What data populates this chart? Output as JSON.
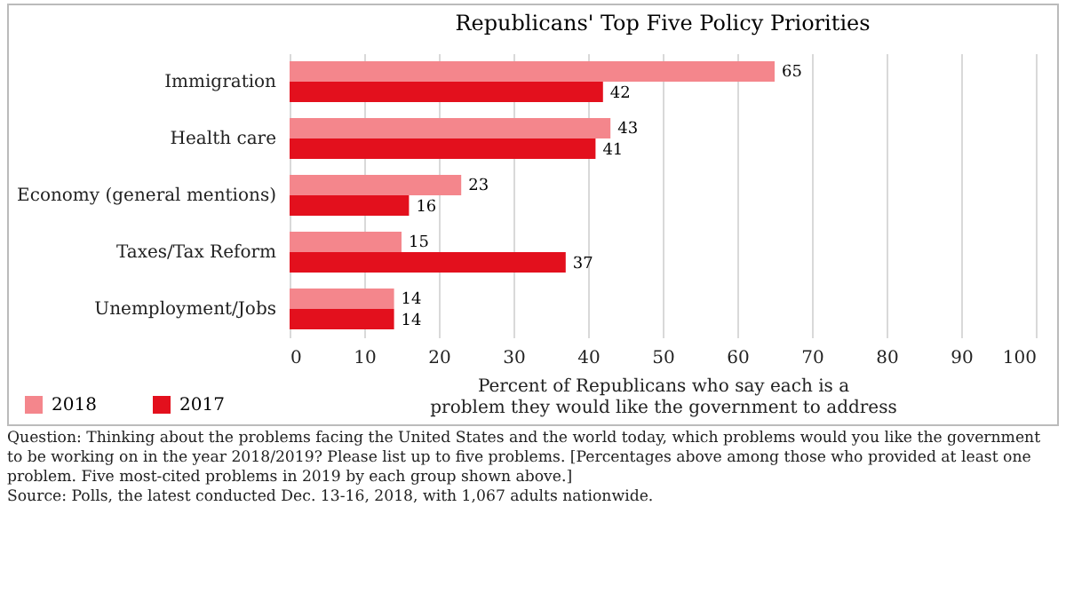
{
  "chart_data": {
    "type": "bar",
    "orientation": "horizontal",
    "title": "Republicans' Top Five Policy Priorities",
    "categories": [
      "Immigration",
      "Health care",
      "Economy (general mentions)",
      "Taxes/Tax Reform",
      "Unemployment/Jobs"
    ],
    "series": [
      {
        "name": "2018",
        "color": "#f4868c",
        "values": [
          65,
          43,
          23,
          15,
          14
        ]
      },
      {
        "name": "2017",
        "color": "#e3101d",
        "values": [
          42,
          41,
          16,
          37,
          14
        ]
      }
    ],
    "xlabel": "Percent of Republicans who say each is a problem they would like the government to address",
    "xlim": [
      0,
      100
    ],
    "xticks": [
      0,
      10,
      20,
      30,
      40,
      50,
      60,
      70,
      80,
      90,
      100
    ],
    "grid": "x",
    "data_labels": true,
    "legend": "bottom left",
    "annotations": [
      "Question: Thinking about the problems facing the United States and the world today, which problems would you like the government to be working on in the year 2018/2019? Please list up to five problems. [Percentages above among those who provided at least one problem. Five most-cited problems in 2019 by each group shown above.]",
      "Source: Polls, the latest conducted Dec. 13-16, 2018, with 1,067 adults nationwide."
    ]
  }
}
